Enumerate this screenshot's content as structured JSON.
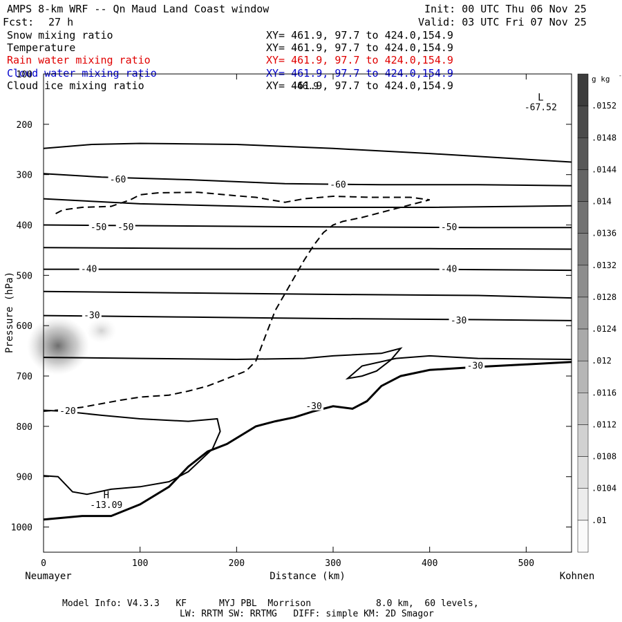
{
  "header": {
    "title": "AMPS 8-km WRF -- Qn Maud Land Coast window",
    "fcst_label": "Fcst:",
    "fcst_value": "27 h",
    "init": "Init: 00 UTC Thu 06 Nov 25",
    "valid": "Valid: 03 UTC Fri 07 Nov 25"
  },
  "fields": [
    {
      "name": "Snow mixing ratio",
      "xy": "XY= 461.9, 97.7 to 424.0,154.9",
      "color": "#000000"
    },
    {
      "name": "Temperature",
      "xy": "XY= 461.9, 97.7 to 424.0,154.9",
      "color": "#000000"
    },
    {
      "name": "Rain water mixing ratio",
      "xy": "XY= 461.9, 97.7 to 424.0,154.9",
      "color": "#e00000"
    },
    {
      "name": "Cloud water mixing ratio",
      "xy": "XY= 461.9, 97.7 to 424.0,154.9",
      "color": "#0000cc"
    },
    {
      "name": "Cloud ice mixing ratio",
      "xy": "XY= 461.9, 97.7 to 424.0,154.9",
      "color": "#000000"
    }
  ],
  "overlap_text": "-46.9",
  "footer": {
    "line1": "Model Info: V4.3.3   KF      MYJ PBL  Morrison            8.0 km,  60 levels,",
    "line2": "LW: RRTM SW: RRTMG   DIFF: simple KM: 2D Smagor"
  },
  "chart_data": {
    "type": "cross-section",
    "xlabel": "Distance (km)",
    "ylabel": "Pressure (hPa)",
    "x_ticks": [
      0,
      100,
      200,
      300,
      400,
      500
    ],
    "xlim": [
      0,
      547
    ],
    "y_ticks": [
      100,
      200,
      300,
      400,
      500,
      600,
      700,
      800,
      900,
      1000
    ],
    "ylim": [
      1050,
      100
    ],
    "x_end_labels": {
      "left": "Neumayer",
      "right": "Kohnen"
    },
    "colorbar": {
      "unit_label": "g kg",
      "unit_exp": "-1",
      "labels": [
        ".0152",
        ".0148",
        ".0144",
        ".014",
        ".0136",
        ".0132",
        ".0128",
        ".0124",
        ".012",
        ".0116",
        ".0112",
        ".0108",
        ".0104",
        ".01"
      ]
    },
    "extrema": [
      {
        "type": "L",
        "value": "-67.52",
        "x": 515,
        "p": 175
      },
      {
        "type": "H",
        "value": "-13.09",
        "x": 65,
        "p": 965
      }
    ],
    "temperature_labels": [
      {
        "text": "-60",
        "x": 77,
        "p": 310
      },
      {
        "text": "-60",
        "x": 305,
        "p": 320
      },
      {
        "text": "-50",
        "x": 57,
        "p": 405
      },
      {
        "text": "-50",
        "x": 85,
        "p": 405
      },
      {
        "text": "-50",
        "x": 420,
        "p": 405
      },
      {
        "text": "-40",
        "x": 47,
        "p": 488
      },
      {
        "text": "-40",
        "x": 420,
        "p": 488
      },
      {
        "text": "-30",
        "x": 50,
        "p": 580
      },
      {
        "text": "-30",
        "x": 430,
        "p": 590
      },
      {
        "text": "-30",
        "x": 447,
        "p": 680
      },
      {
        "text": "-30",
        "x": 280,
        "p": 760
      },
      {
        "text": "-20",
        "x": 25,
        "p": 770
      }
    ],
    "isotherms": [
      {
        "name": "-70",
        "points": [
          [
            0,
            248
          ],
          [
            50,
            240
          ],
          [
            100,
            238
          ],
          [
            200,
            240
          ],
          [
            300,
            248
          ],
          [
            400,
            258
          ],
          [
            547,
            275
          ]
        ]
      },
      {
        "name": "-60",
        "points": [
          [
            0,
            298
          ],
          [
            60,
            305
          ],
          [
            150,
            310
          ],
          [
            250,
            318
          ],
          [
            350,
            320
          ],
          [
            450,
            320
          ],
          [
            547,
            322
          ]
        ]
      },
      {
        "name": "-55",
        "points": [
          [
            0,
            348
          ],
          [
            100,
            358
          ],
          [
            250,
            365
          ],
          [
            400,
            365
          ],
          [
            547,
            362
          ]
        ]
      },
      {
        "name": "-50",
        "points": [
          [
            0,
            400
          ],
          [
            150,
            402
          ],
          [
            300,
            404
          ],
          [
            450,
            405
          ],
          [
            547,
            405
          ]
        ]
      },
      {
        "name": "-45",
        "points": [
          [
            0,
            445
          ],
          [
            200,
            447
          ],
          [
            400,
            447
          ],
          [
            547,
            448
          ]
        ]
      },
      {
        "name": "-40",
        "points": [
          [
            0,
            488
          ],
          [
            200,
            488
          ],
          [
            400,
            488
          ],
          [
            547,
            490
          ]
        ]
      },
      {
        "name": "-35",
        "points": [
          [
            0,
            532
          ],
          [
            150,
            535
          ],
          [
            300,
            538
          ],
          [
            450,
            540
          ],
          [
            547,
            545
          ]
        ]
      },
      {
        "name": "-30",
        "points": [
          [
            0,
            580
          ],
          [
            150,
            583
          ],
          [
            300,
            586
          ],
          [
            450,
            588
          ],
          [
            547,
            590
          ]
        ]
      },
      {
        "name": "-25",
        "points": [
          [
            0,
            663
          ],
          [
            100,
            665
          ],
          [
            200,
            667
          ],
          [
            270,
            665
          ],
          [
            300,
            660
          ],
          [
            350,
            655
          ],
          [
            370,
            645
          ],
          [
            360,
            668
          ],
          [
            345,
            690
          ],
          [
            330,
            700
          ],
          [
            315,
            705
          ],
          [
            330,
            680
          ],
          [
            365,
            665
          ],
          [
            400,
            660
          ],
          [
            450,
            665
          ],
          [
            547,
            667
          ]
        ]
      },
      {
        "name": "-20",
        "points": [
          [
            0,
            768
          ],
          [
            20,
            770
          ],
          [
            60,
            778
          ],
          [
            100,
            785
          ],
          [
            150,
            790
          ],
          [
            180,
            785
          ],
          [
            183,
            810
          ],
          [
            175,
            845
          ],
          [
            150,
            890
          ],
          [
            130,
            910
          ],
          [
            100,
            920
          ],
          [
            70,
            925
          ],
          [
            45,
            935
          ],
          [
            30,
            930
          ],
          [
            15,
            900
          ],
          [
            0,
            898
          ]
        ]
      }
    ],
    "terrain": [
      [
        0,
        985
      ],
      [
        40,
        978
      ],
      [
        70,
        978
      ],
      [
        100,
        955
      ],
      [
        130,
        920
      ],
      [
        150,
        880
      ],
      [
        170,
        850
      ],
      [
        190,
        835
      ],
      [
        220,
        800
      ],
      [
        240,
        790
      ],
      [
        260,
        782
      ],
      [
        280,
        770
      ],
      [
        300,
        760
      ],
      [
        320,
        765
      ],
      [
        335,
        750
      ],
      [
        350,
        720
      ],
      [
        370,
        700
      ],
      [
        400,
        688
      ],
      [
        450,
        682
      ],
      [
        500,
        677
      ],
      [
        547,
        672
      ]
    ],
    "dashed_contour": [
      [
        0,
        770
      ],
      [
        20,
        767
      ],
      [
        40,
        762
      ],
      [
        60,
        755
      ],
      [
        80,
        748
      ],
      [
        100,
        742
      ],
      [
        130,
        738
      ],
      [
        150,
        730
      ],
      [
        170,
        720
      ],
      [
        190,
        705
      ],
      [
        210,
        690
      ],
      [
        220,
        670
      ],
      [
        230,
        620
      ],
      [
        240,
        570
      ],
      [
        255,
        520
      ],
      [
        270,
        470
      ],
      [
        280,
        440
      ],
      [
        290,
        415
      ],
      [
        300,
        400
      ],
      [
        310,
        393
      ],
      [
        330,
        385
      ],
      [
        350,
        375
      ],
      [
        370,
        365
      ],
      [
        400,
        350
      ],
      [
        380,
        345
      ],
      [
        340,
        345
      ],
      [
        300,
        343
      ],
      [
        270,
        348
      ],
      [
        250,
        355
      ],
      [
        220,
        345
      ],
      [
        200,
        342
      ],
      [
        160,
        335
      ],
      [
        120,
        336
      ],
      [
        100,
        340
      ],
      [
        90,
        350
      ],
      [
        70,
        363
      ],
      [
        40,
        365
      ],
      [
        20,
        370
      ],
      [
        10,
        380
      ]
    ],
    "shading_blobs": [
      {
        "x": 15,
        "p": 640,
        "value": 0.0126
      },
      {
        "x": 60,
        "p": 610,
        "value": 0.0108
      }
    ]
  }
}
